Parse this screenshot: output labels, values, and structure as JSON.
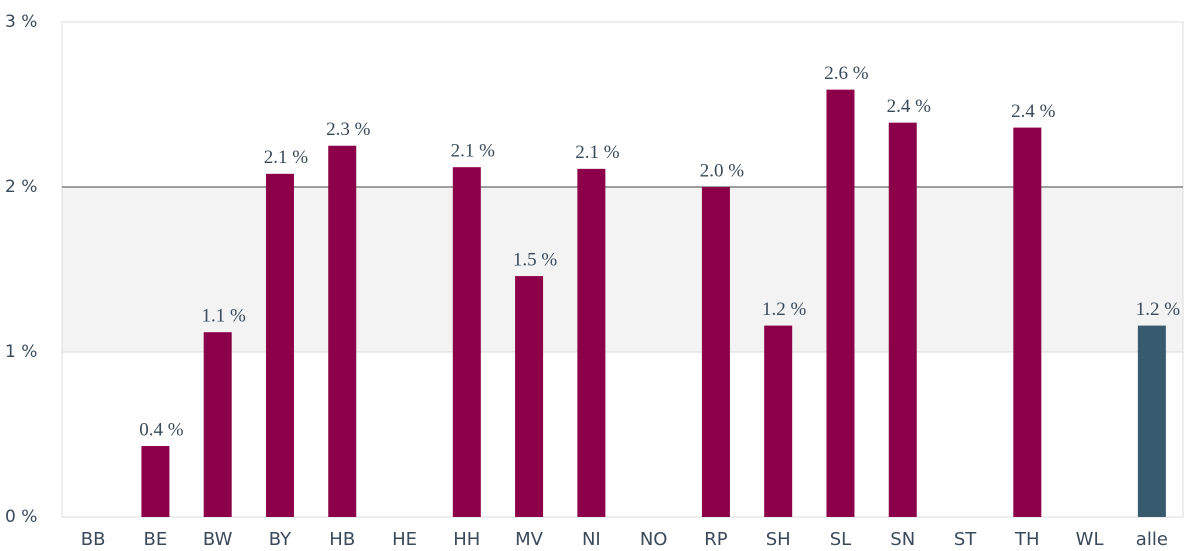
{
  "chart_data": {
    "type": "bar",
    "categories": [
      "BB",
      "BE",
      "BW",
      "BY",
      "HB",
      "HE",
      "HH",
      "MV",
      "NI",
      "NO",
      "RP",
      "SH",
      "SL",
      "SN",
      "ST",
      "TH",
      "WL",
      "alle"
    ],
    "values": [
      null,
      0.43,
      1.12,
      2.08,
      2.25,
      null,
      2.12,
      1.46,
      2.11,
      null,
      2.0,
      1.16,
      2.59,
      2.39,
      null,
      2.36,
      null,
      1.16
    ],
    "value_labels": [
      null,
      "0.4 %",
      "1.1 %",
      "2.1 %",
      "2.3 %",
      null,
      "2.1 %",
      "1.5 %",
      "2.1 %",
      null,
      "2.0 %",
      "1.2 %",
      "2.6 %",
      "2.4 %",
      null,
      "2.4 %",
      null,
      "1.2 %"
    ],
    "colors": [
      "#8b0048",
      "#8b0048",
      "#8b0048",
      "#8b0048",
      "#8b0048",
      "#8b0048",
      "#8b0048",
      "#8b0048",
      "#8b0048",
      "#8b0048",
      "#8b0048",
      "#8b0048",
      "#8b0048",
      "#8b0048",
      "#8b0048",
      "#8b0048",
      "#8b0048",
      "#375a6e"
    ],
    "ylim": [
      0,
      3
    ],
    "yticks": [
      {
        "value": 0,
        "label": "0 %"
      },
      {
        "value": 1,
        "label": "1 %"
      },
      {
        "value": 2,
        "label": "2 %"
      },
      {
        "value": 3,
        "label": "3 %"
      }
    ],
    "band": [
      1,
      2
    ],
    "reference_line": 2
  }
}
